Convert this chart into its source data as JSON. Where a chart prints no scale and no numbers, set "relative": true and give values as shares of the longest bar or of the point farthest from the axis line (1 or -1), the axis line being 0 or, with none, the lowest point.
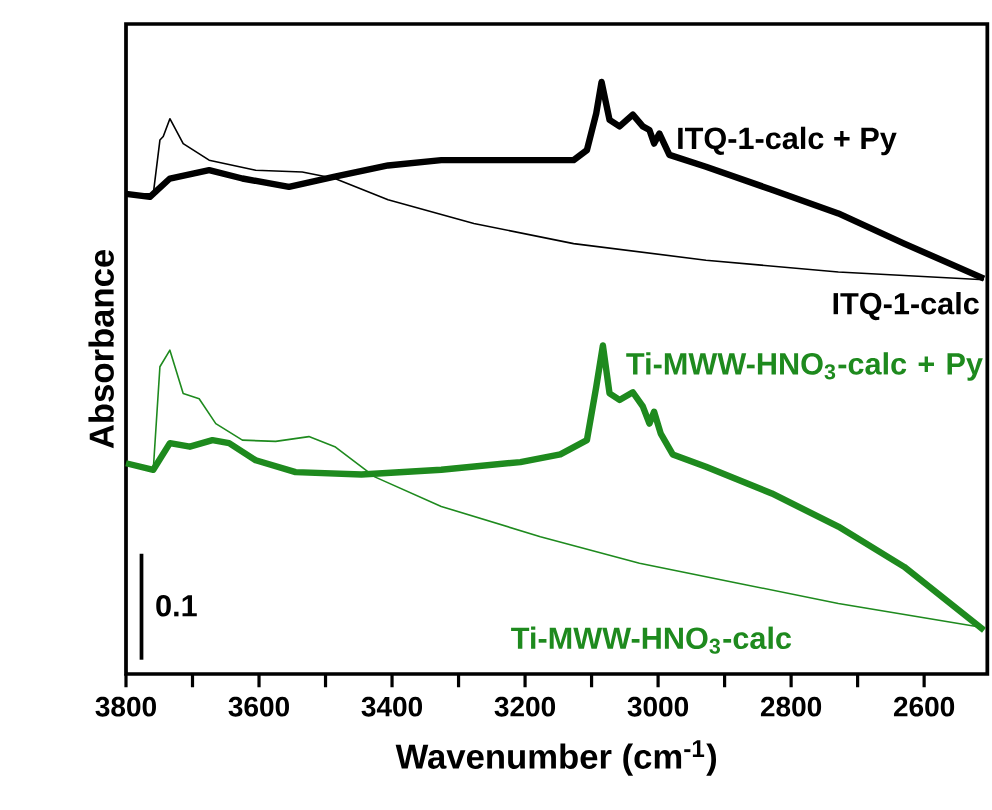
{
  "chart_data": {
    "type": "line",
    "relative": true,
    "xlabel": "Wavenumber (cm$^{-1}$)",
    "ylabel": "Absorbance",
    "xlim": [
      3800,
      2505
    ],
    "xticks": [
      3800,
      {
        "value": 3700,
        "label": null
      },
      3600,
      {
        "value": 3500,
        "label": null
      },
      3400,
      {
        "value": 3300,
        "label": null
      },
      3200,
      {
        "value": 3100,
        "label": null
      },
      3000,
      {
        "value": 2900,
        "label": null
      },
      2800,
      {
        "value": 2700,
        "label": null
      },
      2600
    ],
    "annotations": [
      "0.1"
    ],
    "series": [
      {
        "name": "ITQ-1-calc + Py",
        "color": "#000000",
        "x": [
          3800,
          3764,
          3734,
          3675,
          3625,
          3555,
          3486,
          3406,
          3326,
          3227,
          3127,
          3107,
          3093,
          3085,
          3073,
          3058,
          3038,
          3023,
          3013,
          3006,
          2998,
          2983,
          2928,
          2829,
          2729,
          2630,
          2510
        ],
        "values": [
          0.811,
          0.806,
          0.837,
          0.851,
          0.837,
          0.823,
          0.84,
          0.859,
          0.868,
          0.868,
          0.868,
          0.885,
          0.947,
          1.0,
          0.936,
          0.925,
          0.945,
          0.925,
          0.919,
          0.896,
          0.913,
          0.877,
          0.857,
          0.818,
          0.778,
          0.727,
          0.668
        ]
      },
      {
        "name": "ITQ-1-calc",
        "color": "#000000",
        "x": [
          3800,
          3759,
          3749,
          3744,
          3734,
          3714,
          3675,
          3605,
          3535,
          3486,
          3406,
          3277,
          3127,
          2928,
          2729,
          2510
        ],
        "values": [
          0.811,
          0.811,
          0.902,
          0.908,
          0.938,
          0.896,
          0.868,
          0.851,
          0.848,
          0.837,
          0.801,
          0.761,
          0.727,
          0.699,
          0.679,
          0.666
        ]
      },
      {
        "name": "Ti-MWW-HNO$_{3}$-calc + Py",
        "color": "#1e8a1e",
        "x": [
          3800,
          3759,
          3734,
          3704,
          3670,
          3645,
          3605,
          3545,
          3446,
          3326,
          3207,
          3147,
          3107,
          3093,
          3083,
          3073,
          3058,
          3038,
          3023,
          3013,
          3006,
          2996,
          2978,
          2928,
          2829,
          2729,
          2630,
          2510
        ],
        "values": [
          0.356,
          0.345,
          0.39,
          0.384,
          0.395,
          0.39,
          0.361,
          0.341,
          0.337,
          0.345,
          0.358,
          0.371,
          0.395,
          0.485,
          0.555,
          0.474,
          0.463,
          0.476,
          0.452,
          0.423,
          0.443,
          0.406,
          0.371,
          0.35,
          0.305,
          0.249,
          0.181,
          0.074
        ]
      },
      {
        "name": "Ti-MWW-HNO$_{3}$-calc",
        "color": "#1e8a1e",
        "x": [
          3800,
          3759,
          3749,
          3734,
          3714,
          3690,
          3665,
          3625,
          3575,
          3525,
          3486,
          3426,
          3326,
          3177,
          3028,
          2878,
          2729,
          2510
        ],
        "values": [
          0.356,
          0.345,
          0.519,
          0.547,
          0.474,
          0.465,
          0.423,
          0.395,
          0.393,
          0.401,
          0.384,
          0.333,
          0.283,
          0.232,
          0.187,
          0.153,
          0.119,
          0.078
        ]
      }
    ]
  }
}
